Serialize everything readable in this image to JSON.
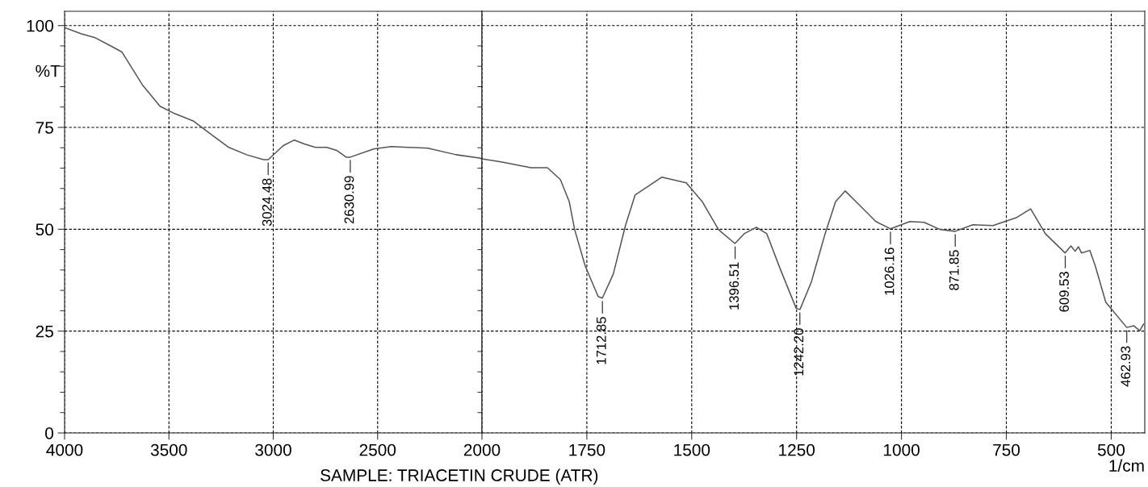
{
  "chart_data": [
    {
      "type": "line",
      "ylabel": "%T",
      "x": [
        4000,
        3922,
        3853,
        3775,
        3725,
        3628,
        3543,
        3473,
        3384,
        3298,
        3213,
        3128,
        3047,
        3024,
        2953,
        2899,
        2849,
        2798,
        2744,
        2694,
        2651,
        2631,
        2519,
        2434,
        2260,
        2124,
        2012,
        2000
      ],
      "series": [
        {
          "color": "#555555",
          "values": [
            99.5,
            98,
            97,
            94.9,
            93.5,
            85.5,
            80.2,
            78.4,
            76.6,
            73.3,
            70.1,
            68.3,
            67.1,
            67.1,
            70.5,
            71.9,
            70.9,
            70.1,
            70.1,
            69.3,
            67.7,
            67.7,
            69.7,
            70.3,
            69.9,
            68.3,
            67.5,
            67.3
          ]
        }
      ],
      "xlim": [
        4000,
        2000
      ],
      "ylim": [
        0,
        103.5
      ],
      "xticks": [
        4000,
        3500,
        3000,
        2500
      ],
      "yticks": [
        0,
        25,
        50,
        75,
        100
      ],
      "grid": true,
      "line_style": "solid",
      "annotations": [
        {
          "text": "3024.48",
          "x": 3024.48,
          "y": 67.1
        },
        {
          "text": "2630.99",
          "x": 2630.99,
          "y": 67.7
        },
        "SAMPLE: TRIACETIN CRUDE (ATR)"
      ]
    },
    {
      "type": "line",
      "xlabel": "1/cm",
      "x": [
        2000,
        1952,
        1883,
        1844,
        1813,
        1792,
        1779,
        1754,
        1723,
        1713,
        1687,
        1658,
        1635,
        1571,
        1513,
        1475,
        1436,
        1397,
        1375,
        1346,
        1321,
        1288,
        1251,
        1242,
        1215,
        1182,
        1157,
        1134,
        1099,
        1061,
        1026,
        980,
        946,
        907,
        872,
        830,
        782,
        725,
        692,
        657,
        610,
        596,
        586,
        578,
        571,
        551,
        538,
        513,
        463,
        446,
        432,
        423
      ],
      "series": [
        {
          "color": "#555555",
          "values": [
            67.3,
            66.5,
            65.1,
            65.1,
            62.2,
            56.8,
            49.9,
            41,
            33.5,
            33.1,
            39,
            50.9,
            58.4,
            62.8,
            61.4,
            56.8,
            49.9,
            46.5,
            48.9,
            50.5,
            48.9,
            40,
            30.6,
            30.3,
            37,
            48.9,
            56.8,
            59.4,
            55.8,
            51.9,
            50.1,
            51.9,
            51.7,
            49.9,
            49.5,
            51.1,
            50.9,
            52.9,
            55,
            48.9,
            44.2,
            45.9,
            44.6,
            45.7,
            44.2,
            44.8,
            41,
            32.1,
            25.9,
            26.3,
            25.1,
            26.7
          ]
        }
      ],
      "xlim": [
        2000,
        420
      ],
      "ylim": [
        0,
        103.5
      ],
      "xticks": [
        2000,
        1750,
        1500,
        1250,
        1000,
        750,
        500
      ],
      "yticks": [
        0,
        25,
        50,
        75,
        100
      ],
      "tick_labels": "x",
      "grid": true,
      "line_style": "solid",
      "annotations": [
        {
          "text": "1712.85",
          "x": 1712.85,
          "y": 33.1
        },
        {
          "text": "1396.51",
          "x": 1396.51,
          "y": 46.5
        },
        {
          "text": "1242.20",
          "x": 1242.2,
          "y": 30.3
        },
        {
          "text": "1026.16",
          "x": 1026.16,
          "y": 50.1
        },
        {
          "text": "871.85",
          "x": 871.85,
          "y": 49.5
        },
        {
          "text": "609.53",
          "x": 609.53,
          "y": 44.2
        },
        {
          "text": "462.93",
          "x": 462.93,
          "y": 25.9
        }
      ]
    }
  ]
}
